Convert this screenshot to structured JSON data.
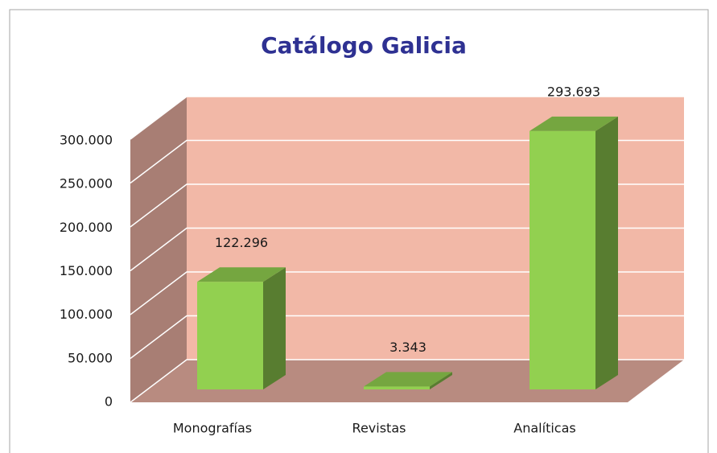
{
  "chart_data": {
    "type": "bar",
    "title": "Catálogo Galicia",
    "categories": [
      "Monografías",
      "Revistas",
      "Analíticas"
    ],
    "values": [
      122296,
      3343,
      293693
    ],
    "value_labels": [
      "122.296",
      "3.343",
      "293.693"
    ],
    "color": "#92d050",
    "ylim": [
      0,
      300000
    ],
    "yticks": [
      0,
      {
        "value": 50000,
        "label": "50.000"
      },
      {
        "value": 100000,
        "label": "100.000"
      },
      {
        "value": 150000,
        "label": "150.000"
      },
      {
        "value": 200000,
        "label": "200.000"
      },
      {
        "value": 250000,
        "label": "250.000"
      },
      {
        "value": 300000,
        "label": "300.000"
      }
    ],
    "grid": true
  }
}
